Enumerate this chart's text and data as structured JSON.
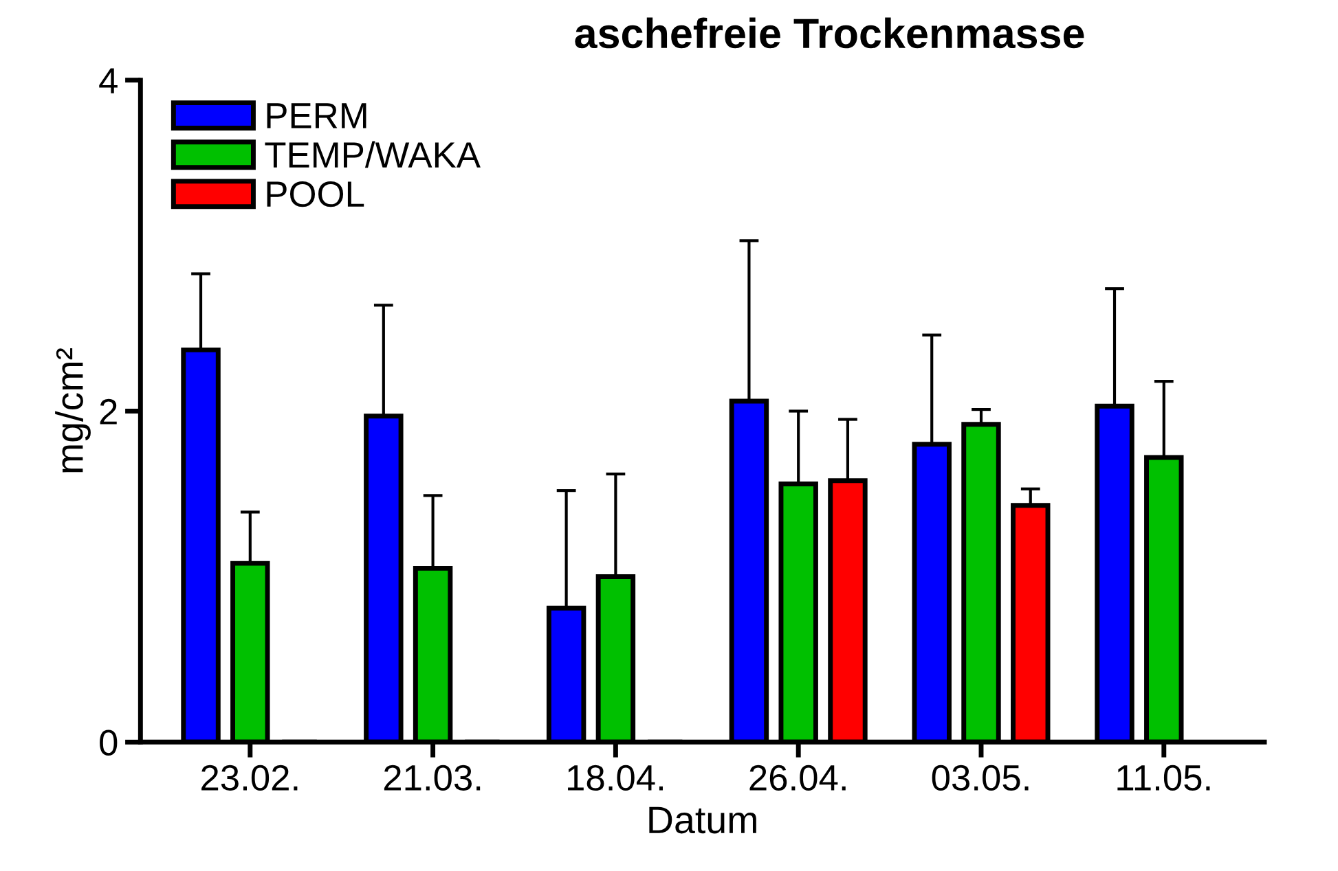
{
  "chart_data": {
    "type": "bar",
    "title": "aschefreie Trockenmasse",
    "xlabel": "Datum",
    "ylabel": "mg/cm²",
    "categories": [
      "23.02.",
      "21.03.",
      "18.04.",
      "26.04.",
      "03.05.",
      "11.05."
    ],
    "series": [
      {
        "name": "PERM",
        "color": "#0000ff",
        "values": [
          2.37,
          1.97,
          0.81,
          2.06,
          1.8,
          2.03
        ],
        "errors": [
          [
            2.37,
            2.83
          ],
          [
            1.97,
            2.64
          ],
          [
            0.81,
            1.52
          ],
          [
            2.06,
            3.03
          ],
          [
            1.8,
            2.46
          ],
          [
            2.03,
            2.74
          ]
        ]
      },
      {
        "name": "TEMP/WAKA",
        "color": "#00c000",
        "values": [
          1.08,
          1.05,
          1.0,
          1.56,
          1.92,
          1.72
        ],
        "errors": [
          [
            1.08,
            1.39
          ],
          [
            1.05,
            1.49
          ],
          [
            1.0,
            1.62
          ],
          [
            1.56,
            2.0
          ],
          [
            1.92,
            2.01
          ],
          [
            1.72,
            2.18
          ]
        ]
      },
      {
        "name": "POOL",
        "color": "#ff0000",
        "values": [
          0,
          0,
          0,
          1.58,
          1.43,
          null
        ],
        "errors": [
          null,
          null,
          null,
          [
            1.58,
            1.95
          ],
          [
            1.43,
            1.53
          ],
          null
        ]
      }
    ],
    "ylim": [
      0,
      4
    ],
    "yticks": [
      0,
      2,
      4
    ],
    "grid": false,
    "legend": "top left"
  }
}
